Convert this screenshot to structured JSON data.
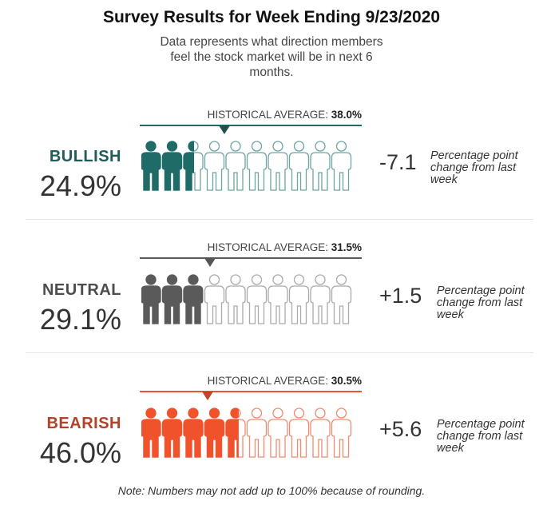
{
  "title": "Survey Results for Week Ending 9/23/2020",
  "subtitle": "Data represents what direction members feel the stock market will be in next 6 months.",
  "note": "Note: Numbers may not add up to 100% because of rounding.",
  "chart_data": {
    "type": "pictograph",
    "icons_per_row": 10,
    "rows": [
      {
        "category": "BULLISH",
        "value": 24.9,
        "value_label": "24.9%",
        "historical_average_label": "HISTORICAL AVERAGE:",
        "historical_average": 38.0,
        "historical_average_text": "38.0%",
        "change": -7.1,
        "change_label": "-7.1",
        "change_note": "Percentage point change from last week",
        "color": "#1f6b68",
        "outline_color": "#6fa3a1",
        "label_color": "#1f5c5a"
      },
      {
        "category": "NEUTRAL",
        "value": 29.1,
        "value_label": "29.1%",
        "historical_average_label": "HISTORICAL AVERAGE:",
        "historical_average": 31.5,
        "historical_average_text": "31.5%",
        "change": 1.5,
        "change_label": "+1.5",
        "change_note": "Percentage point change from last week",
        "color": "#5a5a5a",
        "outline_color": "#aaaaaa",
        "label_color": "#4d4d4d"
      },
      {
        "category": "BEARISH",
        "value": 46.0,
        "value_label": "46.0%",
        "historical_average_label": "HISTORICAL AVERAGE:",
        "historical_average": 30.5,
        "historical_average_text": "30.5%",
        "change": 5.6,
        "change_label": "+5.6",
        "change_note": "Percentage point change from last week",
        "color": "#f0532c",
        "outline_color": "#f08a70",
        "label_color": "#b24229"
      }
    ]
  }
}
